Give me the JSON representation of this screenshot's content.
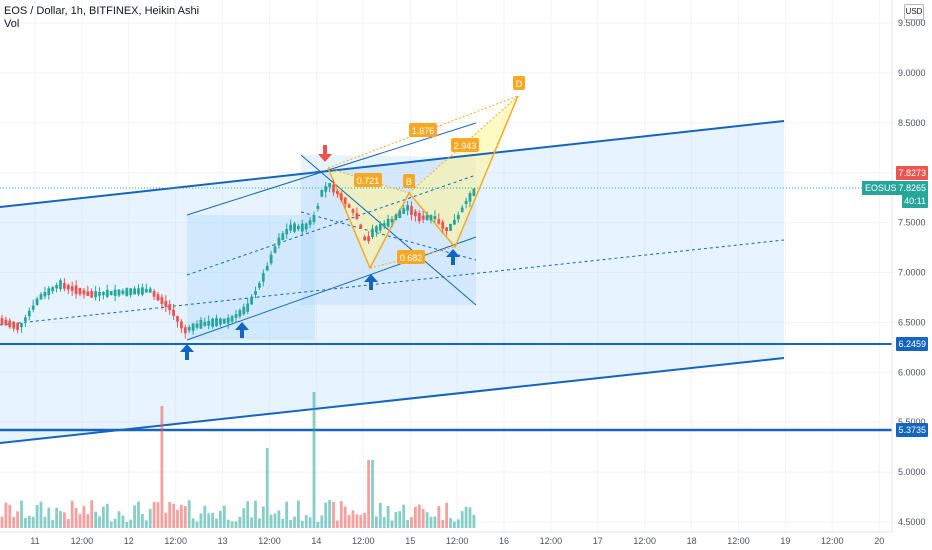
{
  "header": {
    "title": "EOS / Dollar, 1h, BITFINEX, Heikin Ashi",
    "volume_label": "Vol"
  },
  "currency_button": "USD",
  "colors": {
    "up": "#26a69a",
    "down": "#ef5350",
    "blue_line": "#1565c0",
    "channel_fill": "#bbdefb",
    "pattern_orange": "#f9a825",
    "pattern_fill": "#fff59d",
    "arrow_up": "#1565c0",
    "arrow_down": "#ef5350"
  },
  "price_labels": {
    "level_top": "7.8273",
    "symbol": "EOSUSD",
    "last_price": "7.8265",
    "countdown": "40:11",
    "line_1": "6.2459",
    "line_2": "5.3735"
  },
  "chart_data": {
    "type": "candlestick",
    "symbol": "EOSUSD",
    "timeframe": "1h",
    "exchange": "BITFINEX",
    "style": "Heikin Ashi",
    "y_ticks": [
      "9.5000",
      "9.0000",
      "8.5000",
      "8.0000",
      "7.5000",
      "7.0000",
      "6.5000",
      "6.0000",
      "5.5000",
      "5.0000",
      "4.5000"
    ],
    "ylim": [
      4.45,
      9.65
    ],
    "x_ticks": [
      "11",
      "12:00",
      "12",
      "12:00",
      "13",
      "12:00",
      "14",
      "12:00",
      "15",
      "12:00",
      "16",
      "12:00",
      "17",
      "12:00",
      "18",
      "12:00",
      "19",
      "12:00",
      "20"
    ],
    "horizontal_levels": [
      6.2459,
      5.3735
    ],
    "pattern_labels": [
      {
        "text": "D",
        "point": "D"
      },
      {
        "text": "B",
        "point": "B"
      },
      {
        "text": "1.676",
        "kind": "ratio"
      },
      {
        "text": "2.943",
        "kind": "ratio"
      },
      {
        "text": "0.721",
        "kind": "ratio"
      },
      {
        "text": "0.682",
        "kind": "ratio"
      }
    ],
    "grid": true,
    "legend": "top-left"
  }
}
